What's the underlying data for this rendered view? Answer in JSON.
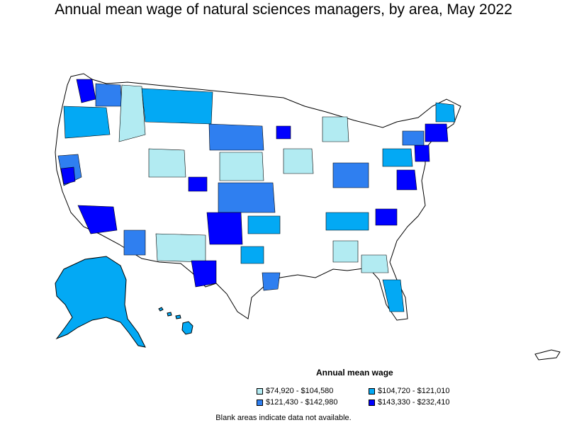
{
  "title": "Annual mean wage of natural sciences managers, by area, May 2022",
  "legend": {
    "title": "Annual mean wage",
    "items": [
      {
        "label": "$74,920 - $104,580",
        "color": "#b2ebf2"
      },
      {
        "label": "$104,720 - $121,010",
        "color": "#03a9f4"
      },
      {
        "label": "$121,430 - $142,980",
        "color": "#2f7ff0"
      },
      {
        "label": "$143,330 - $232,410",
        "color": "#0000ff"
      }
    ]
  },
  "note": "Blank areas indicate data not available.",
  "colors": {
    "none": "#ffffff",
    "c1": "#b2ebf2",
    "c2": "#03a9f4",
    "c3": "#2f7ff0",
    "c4": "#0000ff",
    "border": "#000000"
  }
}
